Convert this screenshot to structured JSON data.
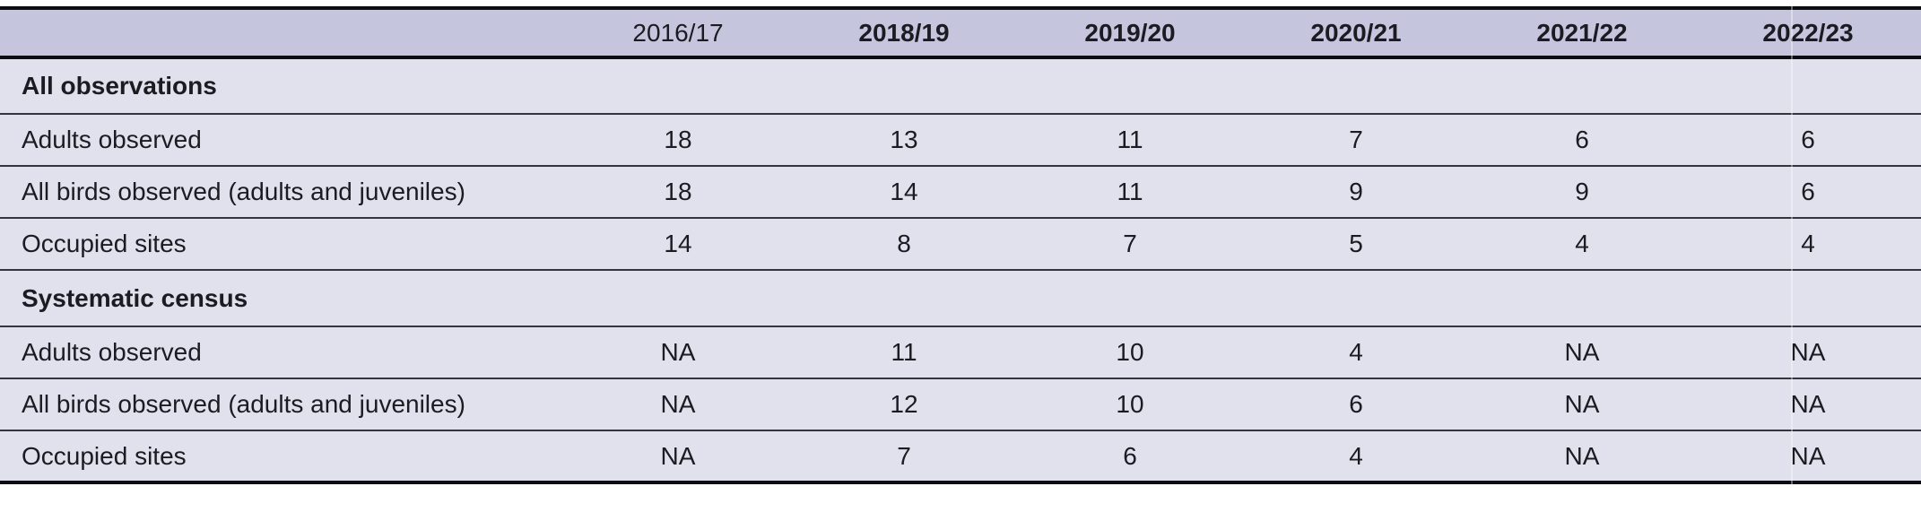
{
  "table": {
    "columns": [
      {
        "label": "",
        "bold": false
      },
      {
        "label": "2016/17",
        "bold": false
      },
      {
        "label": "2018/19",
        "bold": true
      },
      {
        "label": "2019/20",
        "bold": true
      },
      {
        "label": "2020/21",
        "bold": true
      },
      {
        "label": "2021/22",
        "bold": true
      },
      {
        "label": "2022/23",
        "bold": true
      }
    ],
    "sections": [
      {
        "title": "All observations",
        "rows": [
          {
            "label": "Adults observed",
            "values": [
              "18",
              "13",
              "11",
              "7",
              "6",
              "6"
            ]
          },
          {
            "label": "All birds observed (adults and juveniles)",
            "values": [
              "18",
              "14",
              "11",
              "9",
              "9",
              "6"
            ]
          },
          {
            "label": "Occupied sites",
            "values": [
              "14",
              "8",
              "7",
              "5",
              "4",
              "4"
            ]
          }
        ]
      },
      {
        "title": "Systematic census",
        "rows": [
          {
            "label": "Adults observed",
            "values": [
              "NA",
              "11",
              "10",
              "4",
              "NA",
              "NA"
            ]
          },
          {
            "label": "All birds observed (adults and juveniles)",
            "values": [
              "NA",
              "12",
              "10",
              "6",
              "NA",
              "NA"
            ]
          },
          {
            "label": "Occupied sites",
            "values": [
              "NA",
              "7",
              "6",
              "4",
              "NA",
              "NA"
            ]
          }
        ]
      }
    ]
  },
  "colors": {
    "header_bg": "#c5c6de",
    "body_bg": "#e0e1ed",
    "heavy_rule": "#0c0c12",
    "row_divider": "#34343c",
    "text": "#1b1b21"
  },
  "chart_data": {
    "type": "table",
    "columns": [
      "",
      "2016/17",
      "2018/19",
      "2019/20",
      "2020/21",
      "2021/22",
      "2022/23"
    ],
    "rows": [
      [
        "All observations",
        "",
        "",
        "",
        "",
        "",
        ""
      ],
      [
        "Adults observed",
        18,
        13,
        11,
        7,
        6,
        6
      ],
      [
        "All birds observed (adults and juveniles)",
        18,
        14,
        11,
        9,
        9,
        6
      ],
      [
        "Occupied sites",
        14,
        8,
        7,
        5,
        4,
        4
      ],
      [
        "Systematic census",
        "",
        "",
        "",
        "",
        "",
        ""
      ],
      [
        "Adults observed",
        "NA",
        11,
        10,
        4,
        "NA",
        "NA"
      ],
      [
        "All birds observed (adults and juveniles)",
        "NA",
        12,
        10,
        6,
        "NA",
        "NA"
      ],
      [
        "Occupied sites",
        "NA",
        7,
        6,
        4,
        "NA",
        "NA"
      ]
    ]
  }
}
